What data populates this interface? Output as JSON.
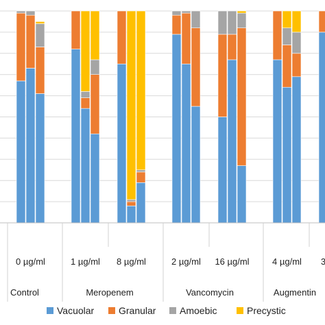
{
  "chart_data": {
    "type": "bar",
    "stacked": true,
    "normalized": true,
    "ylim": [
      0,
      100
    ],
    "grid": true,
    "legend_position": "bottom",
    "stack_order": [
      "Vacuolar",
      "Granular",
      "Amoebic",
      "Precystic"
    ],
    "colors": {
      "Vacuolar": "#5b9bd5",
      "Granular": "#ed7d31",
      "Amoebic": "#a5a5a5",
      "Precystic": "#ffc000"
    },
    "groups": [
      {
        "name": "Control",
        "doses": [
          {
            "label": "0 µg/ml",
            "bars": [
              [
                67,
                32,
                1,
                0
              ],
              [
                73,
                25,
                2,
                0
              ],
              [
                61,
                22,
                11,
                1
              ]
            ]
          }
        ]
      },
      {
        "name": "Meropenem",
        "doses": [
          {
            "label": "1 µg/ml",
            "bars": [
              [
                82,
                18,
                0,
                0
              ],
              [
                54,
                5,
                3,
                38
              ],
              [
                42,
                28,
                7,
                23
              ]
            ]
          },
          {
            "label": "8 µg/ml",
            "bars": [
              [
                75,
                25,
                0,
                0
              ],
              [
                8,
                2,
                1,
                89
              ],
              [
                19,
                5,
                1,
                75
              ]
            ]
          }
        ]
      },
      {
        "name": "Vancomycin",
        "doses": [
          {
            "label": "2 µg/ml",
            "bars": [
              [
                89,
                9,
                2,
                0
              ],
              [
                75,
                24,
                1,
                0
              ],
              [
                55,
                37,
                8,
                0
              ]
            ]
          },
          {
            "label": "16 µg/ml",
            "bars": [
              [
                50,
                39,
                11,
                0
              ],
              [
                77,
                12,
                11,
                0
              ],
              [
                27,
                65,
                7,
                1
              ]
            ]
          }
        ]
      },
      {
        "name": "Augmentin",
        "doses": [
          {
            "label": "4 µg/ml",
            "bars": [
              [
                77,
                23,
                0,
                0
              ],
              [
                64,
                20,
                8,
                8
              ],
              [
                69,
                11,
                10,
                10
              ]
            ]
          },
          {
            "label": "3",
            "bars": [
              [
                90,
                10,
                0,
                0
              ]
            ]
          }
        ]
      }
    ],
    "legend": [
      "Vacuolar",
      "Granular",
      "Amoebic",
      "Precystic"
    ]
  }
}
